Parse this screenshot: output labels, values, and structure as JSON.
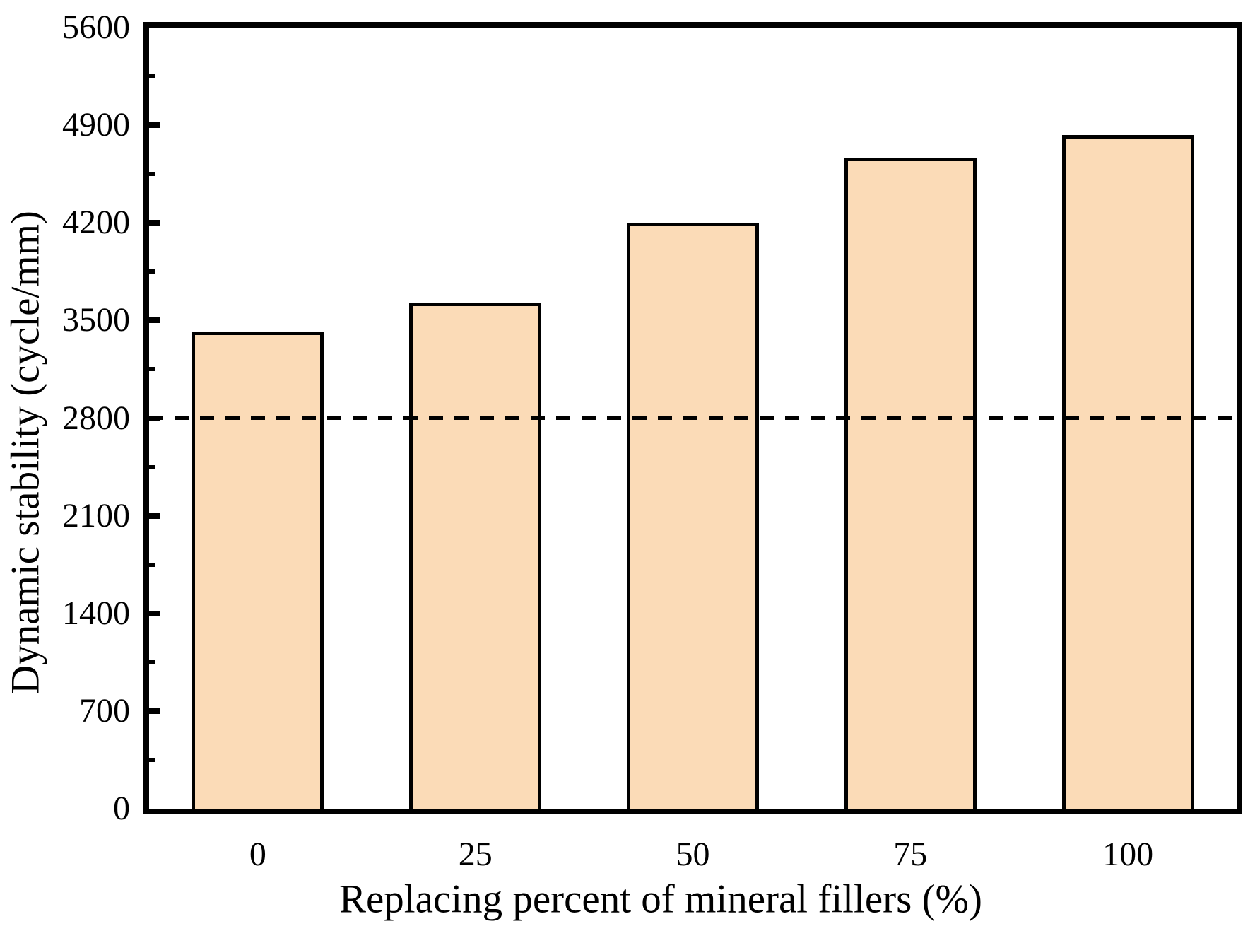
{
  "chart_data": {
    "type": "bar",
    "categories": [
      "0",
      "25",
      "50",
      "75",
      "100"
    ],
    "values": [
      3420,
      3630,
      4200,
      4670,
      4830
    ],
    "title": "",
    "xlabel": "Replacing percent of mineral fillers (%)",
    "ylabel": "Dynamic stability (cycle/mm)",
    "ylim": [
      0,
      5600
    ],
    "yticks": [
      0,
      700,
      1400,
      2100,
      2800,
      3500,
      4200,
      4900,
      5600
    ],
    "minor_tick_interval": 350,
    "reference_line": {
      "value": 2800,
      "style": "dashed",
      "color": "#000000"
    },
    "bar_fill_color": "#FBDBB7",
    "bar_border_color": "#000000",
    "axis_color": "#000000",
    "text_color": "#000000",
    "grid": false,
    "legend_position": "none"
  }
}
